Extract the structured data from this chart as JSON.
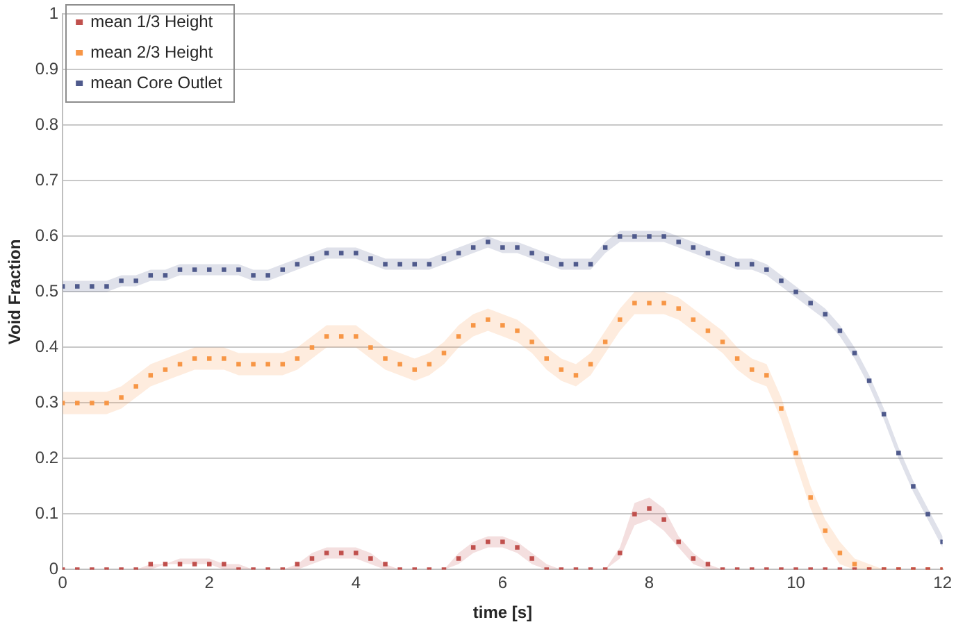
{
  "chart_data": {
    "type": "scatter",
    "xlabel": "time [s]",
    "ylabel": "Void Fraction",
    "xlim": [
      0,
      12
    ],
    "xticks": [
      0,
      2,
      4,
      6,
      8,
      10,
      12
    ],
    "ylim": [
      0,
      1
    ],
    "yticks": [
      0,
      0.1,
      0.2,
      0.3,
      0.4,
      0.5,
      0.6,
      0.7,
      0.8,
      0.9,
      1
    ],
    "grid": "y",
    "legend": "top left",
    "marker": "square",
    "x": [
      0,
      0.2,
      0.4,
      0.6,
      0.8,
      1,
      1.2,
      1.4,
      1.6,
      1.8,
      2,
      2.2,
      2.4,
      2.6,
      2.8,
      3,
      3.2,
      3.4,
      3.6,
      3.8,
      4,
      4.2,
      4.4,
      4.6,
      4.8,
      5,
      5.2,
      5.4,
      5.6,
      5.8,
      6,
      6.2,
      6.4,
      6.6,
      6.8,
      7,
      7.2,
      7.4,
      7.6,
      7.8,
      8,
      8.2,
      8.4,
      8.6,
      8.8,
      9,
      9.2,
      9.4,
      9.6,
      9.8,
      10,
      10.2,
      10.4,
      10.6,
      10.8,
      11,
      11.2,
      11.4,
      11.6,
      11.8,
      12
    ],
    "series": [
      {
        "name": "mean 1/3 Height",
        "color": "#c0504d",
        "values": [
          0,
          0,
          0,
          0,
          0,
          0,
          0.01,
          0.01,
          0.01,
          0.01,
          0.01,
          0.01,
          0,
          0,
          0,
          0,
          0.01,
          0.02,
          0.03,
          0.03,
          0.03,
          0.02,
          0.01,
          0,
          0,
          0,
          0,
          0.02,
          0.04,
          0.05,
          0.05,
          0.04,
          0.02,
          0,
          0,
          0,
          0,
          0,
          0.03,
          0.1,
          0.11,
          0.09,
          0.05,
          0.02,
          0.01,
          0,
          0,
          0,
          0,
          0,
          0,
          0,
          0,
          0,
          0,
          0,
          0,
          0,
          0,
          0,
          0
        ],
        "lower": [
          0,
          0,
          0,
          0,
          0,
          0,
          0,
          0.01,
          0.01,
          0.01,
          0.01,
          0,
          0,
          0,
          0,
          0,
          0,
          0.01,
          0.02,
          0.02,
          0.02,
          0.01,
          0,
          0,
          0,
          0,
          0,
          0.01,
          0.03,
          0.04,
          0.04,
          0.03,
          0.01,
          0,
          0,
          0,
          0,
          0,
          0.02,
          0.08,
          0.09,
          0.07,
          0.04,
          0.01,
          0,
          0,
          0,
          0,
          0,
          0,
          0,
          0,
          0,
          0,
          0,
          0,
          0,
          0,
          0,
          0,
          0
        ],
        "upper": [
          0,
          0,
          0,
          0,
          0,
          0,
          0.01,
          0.01,
          0.02,
          0.02,
          0.02,
          0.01,
          0.01,
          0,
          0,
          0,
          0.01,
          0.03,
          0.04,
          0.04,
          0.04,
          0.03,
          0.01,
          0,
          0,
          0,
          0,
          0.03,
          0.05,
          0.06,
          0.06,
          0.05,
          0.03,
          0.01,
          0,
          0,
          0,
          0,
          0.04,
          0.12,
          0.13,
          0.11,
          0.06,
          0.03,
          0.01,
          0,
          0,
          0,
          0,
          0,
          0,
          0,
          0,
          0,
          0,
          0,
          0,
          0,
          0,
          0,
          0
        ]
      },
      {
        "name": "mean 2/3 Height",
        "color": "#f79646",
        "values": [
          0.3,
          0.3,
          0.3,
          0.3,
          0.31,
          0.33,
          0.35,
          0.36,
          0.37,
          0.38,
          0.38,
          0.38,
          0.37,
          0.37,
          0.37,
          0.37,
          0.38,
          0.4,
          0.42,
          0.42,
          0.42,
          0.4,
          0.38,
          0.37,
          0.36,
          0.37,
          0.39,
          0.42,
          0.44,
          0.45,
          0.44,
          0.43,
          0.41,
          0.38,
          0.36,
          0.35,
          0.37,
          0.41,
          0.45,
          0.48,
          0.48,
          0.48,
          0.47,
          0.45,
          0.43,
          0.41,
          0.38,
          0.36,
          0.35,
          0.29,
          0.21,
          0.13,
          0.07,
          0.03,
          0.01,
          0,
          0,
          0,
          0,
          0,
          0
        ],
        "lower": [
          0.28,
          0.28,
          0.28,
          0.28,
          0.29,
          0.31,
          0.33,
          0.34,
          0.35,
          0.36,
          0.36,
          0.36,
          0.35,
          0.35,
          0.35,
          0.35,
          0.36,
          0.38,
          0.4,
          0.4,
          0.4,
          0.38,
          0.36,
          0.35,
          0.34,
          0.35,
          0.37,
          0.4,
          0.42,
          0.43,
          0.42,
          0.41,
          0.39,
          0.36,
          0.34,
          0.33,
          0.35,
          0.39,
          0.43,
          0.46,
          0.46,
          0.46,
          0.45,
          0.43,
          0.41,
          0.39,
          0.36,
          0.34,
          0.33,
          0.27,
          0.19,
          0.11,
          0.05,
          0.01,
          0,
          0,
          0,
          0,
          0,
          0,
          0
        ],
        "upper": [
          0.32,
          0.32,
          0.32,
          0.32,
          0.33,
          0.35,
          0.37,
          0.38,
          0.39,
          0.4,
          0.4,
          0.4,
          0.39,
          0.39,
          0.39,
          0.39,
          0.4,
          0.42,
          0.44,
          0.44,
          0.44,
          0.42,
          0.4,
          0.39,
          0.38,
          0.39,
          0.41,
          0.44,
          0.46,
          0.47,
          0.46,
          0.45,
          0.43,
          0.4,
          0.38,
          0.37,
          0.39,
          0.43,
          0.47,
          0.5,
          0.5,
          0.5,
          0.49,
          0.47,
          0.45,
          0.43,
          0.4,
          0.38,
          0.37,
          0.31,
          0.23,
          0.15,
          0.09,
          0.05,
          0.02,
          0.01,
          0,
          0,
          0,
          0,
          0
        ]
      },
      {
        "name": "mean Core Outlet",
        "color": "#4f5a8c",
        "values": [
          0.51,
          0.51,
          0.51,
          0.51,
          0.52,
          0.52,
          0.53,
          0.53,
          0.54,
          0.54,
          0.54,
          0.54,
          0.54,
          0.53,
          0.53,
          0.54,
          0.55,
          0.56,
          0.57,
          0.57,
          0.57,
          0.56,
          0.55,
          0.55,
          0.55,
          0.55,
          0.56,
          0.57,
          0.58,
          0.59,
          0.58,
          0.58,
          0.57,
          0.56,
          0.55,
          0.55,
          0.55,
          0.58,
          0.6,
          0.6,
          0.6,
          0.6,
          0.59,
          0.58,
          0.57,
          0.56,
          0.55,
          0.55,
          0.54,
          0.52,
          0.5,
          0.48,
          0.46,
          0.43,
          0.39,
          0.34,
          0.28,
          0.21,
          0.15,
          0.1,
          0.05
        ],
        "lower": [
          0.5,
          0.5,
          0.5,
          0.5,
          0.51,
          0.51,
          0.52,
          0.52,
          0.53,
          0.53,
          0.53,
          0.53,
          0.53,
          0.52,
          0.52,
          0.53,
          0.54,
          0.55,
          0.56,
          0.56,
          0.56,
          0.55,
          0.54,
          0.54,
          0.54,
          0.54,
          0.55,
          0.56,
          0.57,
          0.58,
          0.57,
          0.57,
          0.56,
          0.55,
          0.54,
          0.54,
          0.54,
          0.57,
          0.59,
          0.59,
          0.59,
          0.59,
          0.58,
          0.57,
          0.56,
          0.55,
          0.54,
          0.54,
          0.53,
          0.51,
          0.49,
          0.47,
          0.45,
          0.42,
          0.38,
          0.33,
          0.27,
          0.2,
          0.14,
          0.09,
          0.04
        ],
        "upper": [
          0.52,
          0.52,
          0.52,
          0.52,
          0.53,
          0.53,
          0.54,
          0.54,
          0.55,
          0.55,
          0.55,
          0.55,
          0.55,
          0.54,
          0.54,
          0.55,
          0.56,
          0.57,
          0.58,
          0.58,
          0.58,
          0.57,
          0.56,
          0.56,
          0.56,
          0.56,
          0.57,
          0.58,
          0.59,
          0.6,
          0.59,
          0.59,
          0.58,
          0.57,
          0.56,
          0.56,
          0.56,
          0.59,
          0.61,
          0.61,
          0.61,
          0.61,
          0.6,
          0.59,
          0.58,
          0.57,
          0.56,
          0.56,
          0.55,
          0.53,
          0.51,
          0.49,
          0.47,
          0.44,
          0.4,
          0.35,
          0.29,
          0.22,
          0.16,
          0.11,
          0.06
        ]
      }
    ]
  }
}
